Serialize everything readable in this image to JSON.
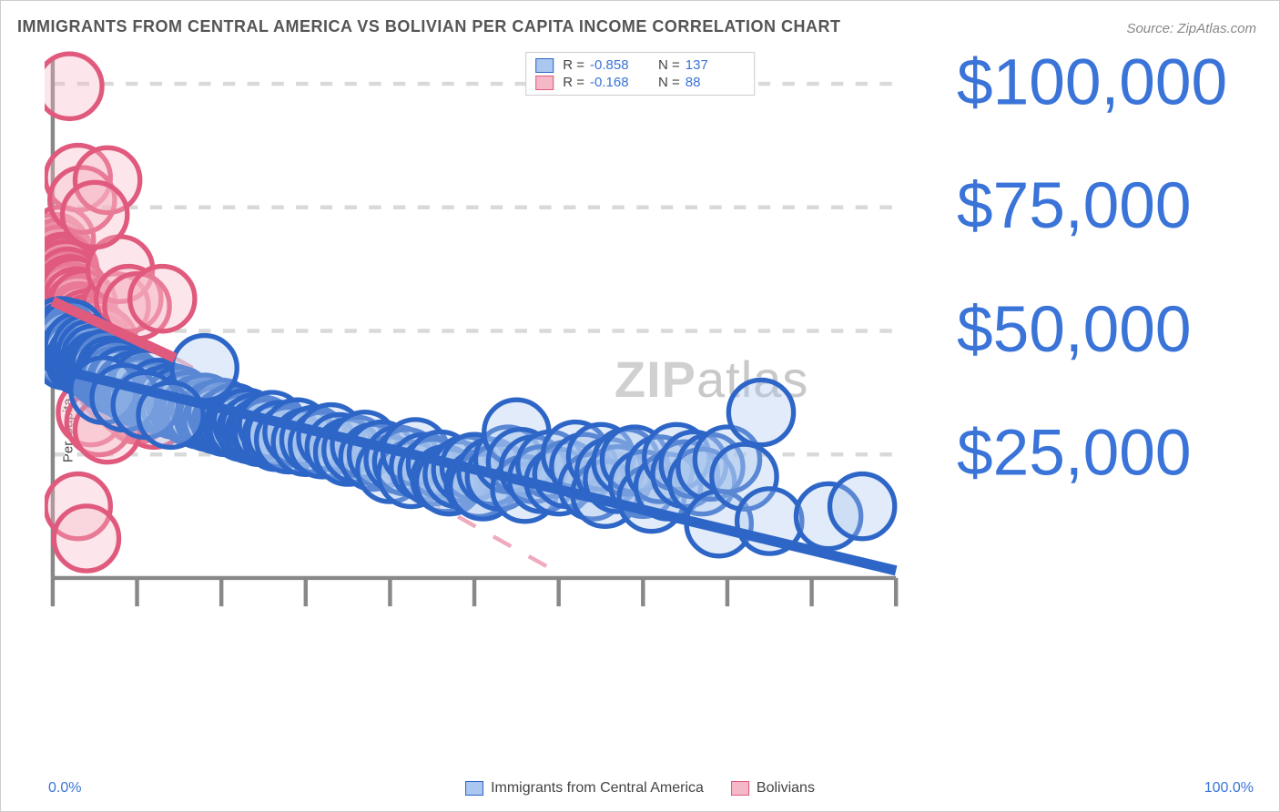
{
  "title": "IMMIGRANTS FROM CENTRAL AMERICA VS BOLIVIAN PER CAPITA INCOME CORRELATION CHART",
  "source": "Source: ZipAtlas.com",
  "watermark": {
    "part1": "ZIP",
    "part2": "atlas"
  },
  "ylabel": "Per Capita Income",
  "chart": {
    "type": "scatter",
    "background_color": "#ffffff",
    "grid_color": "#d9d9d9",
    "axis_color": "#888888",
    "xlim": [
      0,
      100
    ],
    "ylim": [
      0,
      105000
    ],
    "xtick_positions": [
      0,
      10,
      20,
      30,
      40,
      50,
      60,
      70,
      80,
      90,
      100
    ],
    "ytick_values": [
      25000,
      50000,
      75000,
      100000
    ],
    "ytick_labels": [
      "$25,000",
      "$50,000",
      "$75,000",
      "$100,000"
    ],
    "xaxis_start_label": "0.0%",
    "xaxis_end_label": "100.0%",
    "tick_label_color": "#3b74d8",
    "tick_label_fontsize": 16,
    "marker_radius": 8,
    "marker_stroke_width": 1.2,
    "marker_fill_opacity": 0.35,
    "trendline_width": 2.5,
    "series": [
      {
        "name": "Immigrants from Central America",
        "color_fill": "#a9c7ef",
        "color_stroke": "#2e66c7",
        "R": "-0.858",
        "N": "137",
        "trendline": {
          "x1": 0,
          "y1": 42500,
          "x2": 100,
          "y2": 1500,
          "dashed": false
        },
        "points": [
          [
            0.5,
            48500
          ],
          [
            0.8,
            47000
          ],
          [
            1.0,
            50000
          ],
          [
            1.2,
            46000
          ],
          [
            1.4,
            49000
          ],
          [
            1.5,
            45000
          ],
          [
            1.8,
            48000
          ],
          [
            2.0,
            47500
          ],
          [
            2.2,
            49500
          ],
          [
            2.5,
            46000
          ],
          [
            2.8,
            45500
          ],
          [
            3.0,
            47000
          ],
          [
            3.2,
            44000
          ],
          [
            3.5,
            45000
          ],
          [
            3.8,
            43500
          ],
          [
            4.0,
            46500
          ],
          [
            4.2,
            44000
          ],
          [
            4.5,
            45500
          ],
          [
            4.8,
            43000
          ],
          [
            5.0,
            44500
          ],
          [
            5.2,
            43000
          ],
          [
            5.5,
            42500
          ],
          [
            5.8,
            41500
          ],
          [
            6.0,
            42000
          ],
          [
            6.3,
            43500
          ],
          [
            6.5,
            40500
          ],
          [
            6.8,
            42000
          ],
          [
            7.0,
            41000
          ],
          [
            7.3,
            40000
          ],
          [
            7.5,
            41500
          ],
          [
            8.0,
            39500
          ],
          [
            8.5,
            40000
          ],
          [
            9.0,
            38500
          ],
          [
            9.5,
            39000
          ],
          [
            10.0,
            37500
          ],
          [
            10.5,
            38000
          ],
          [
            11.0,
            39500
          ],
          [
            11.5,
            36500
          ],
          [
            12.0,
            37000
          ],
          [
            12.5,
            37500
          ],
          [
            13.0,
            36000
          ],
          [
            13.5,
            35500
          ],
          [
            14.0,
            36500
          ],
          [
            14.5,
            35000
          ],
          [
            15.0,
            36000
          ],
          [
            15.5,
            34500
          ],
          [
            16.0,
            35000
          ],
          [
            16.5,
            33500
          ],
          [
            17.0,
            34000
          ],
          [
            17.5,
            33000
          ],
          [
            18.0,
            34500
          ],
          [
            18.5,
            32500
          ],
          [
            19.0,
            33000
          ],
          [
            19.5,
            32000
          ],
          [
            20.0,
            33500
          ],
          [
            20.5,
            31500
          ],
          [
            21.0,
            32000
          ],
          [
            21.5,
            32500
          ],
          [
            22.0,
            31000
          ],
          [
            22.5,
            30500
          ],
          [
            23.0,
            31500
          ],
          [
            23.5,
            30000
          ],
          [
            24.0,
            30500
          ],
          [
            24.5,
            29500
          ],
          [
            25.0,
            30000
          ],
          [
            25.5,
            29500
          ],
          [
            26.0,
            31000
          ],
          [
            26.5,
            28500
          ],
          [
            27.0,
            29000
          ],
          [
            28.0,
            28000
          ],
          [
            29.0,
            29500
          ],
          [
            30.0,
            27500
          ],
          [
            31.0,
            28000
          ],
          [
            32.0,
            27000
          ],
          [
            33.0,
            28500
          ],
          [
            34.0,
            26500
          ],
          [
            35.0,
            25500
          ],
          [
            36.0,
            26000
          ],
          [
            37.0,
            27000
          ],
          [
            38.0,
            24500
          ],
          [
            39.0,
            25000
          ],
          [
            40.0,
            22000
          ],
          [
            41.0,
            24000
          ],
          [
            42.0,
            23500
          ],
          [
            42.5,
            21000
          ],
          [
            43.0,
            25500
          ],
          [
            44.0,
            22500
          ],
          [
            45.0,
            21500
          ],
          [
            46.0,
            23000
          ],
          [
            46.5,
            20000
          ],
          [
            47.0,
            19500
          ],
          [
            48.0,
            21000
          ],
          [
            49.0,
            22000
          ],
          [
            50.0,
            22500
          ],
          [
            50.5,
            19000
          ],
          [
            51.0,
            18500
          ],
          [
            52.0,
            21500
          ],
          [
            53.0,
            20500
          ],
          [
            54.0,
            24000
          ],
          [
            55.0,
            29500
          ],
          [
            55.5,
            23500
          ],
          [
            56.0,
            18000
          ],
          [
            57.0,
            22000
          ],
          [
            58.0,
            20000
          ],
          [
            59.0,
            23000
          ],
          [
            60.0,
            19500
          ],
          [
            61.0,
            21000
          ],
          [
            62.0,
            25000
          ],
          [
            63.0,
            22500
          ],
          [
            64.0,
            18500
          ],
          [
            65.0,
            24500
          ],
          [
            65.5,
            17000
          ],
          [
            66.0,
            21500
          ],
          [
            67.0,
            20000
          ],
          [
            68.0,
            23500
          ],
          [
            69.0,
            24000
          ],
          [
            70.0,
            19000
          ],
          [
            71.0,
            16000
          ],
          [
            72.0,
            22000
          ],
          [
            73.0,
            18500
          ],
          [
            74.0,
            24500
          ],
          [
            75.0,
            21000
          ],
          [
            76.0,
            23000
          ],
          [
            77.0,
            19500
          ],
          [
            78.0,
            22500
          ],
          [
            79.0,
            11000
          ],
          [
            80.0,
            24000
          ],
          [
            82.0,
            20500
          ],
          [
            84.0,
            33500
          ],
          [
            85.0,
            11500
          ],
          [
            92.0,
            12500
          ],
          [
            96.0,
            14500
          ],
          [
            18.0,
            42500
          ],
          [
            6.0,
            38000
          ],
          [
            8.5,
            36500
          ],
          [
            11.0,
            35000
          ],
          [
            14.0,
            33000
          ]
        ]
      },
      {
        "name": "Bolivians",
        "color_fill": "#f5b8c7",
        "color_stroke": "#e05a7d",
        "R": "-0.168",
        "N": "88",
        "trendline": {
          "x1": 0,
          "y1": 56000,
          "x2": 14.5,
          "y2": 44500,
          "dashed": false
        },
        "trendline_ext": {
          "x1": 14.5,
          "y1": 44500,
          "x2": 60,
          "y2": 1000,
          "dashed": true
        },
        "points": [
          [
            0.3,
            67000
          ],
          [
            0.5,
            65000
          ],
          [
            0.5,
            63500
          ],
          [
            0.7,
            66000
          ],
          [
            0.8,
            62000
          ],
          [
            0.8,
            64500
          ],
          [
            1.0,
            61000
          ],
          [
            1.0,
            68500
          ],
          [
            1.1,
            59000
          ],
          [
            1.2,
            63000
          ],
          [
            1.2,
            60500
          ],
          [
            1.3,
            58000
          ],
          [
            1.4,
            62500
          ],
          [
            1.5,
            57500
          ],
          [
            1.5,
            61500
          ],
          [
            1.6,
            56000
          ],
          [
            1.7,
            59500
          ],
          [
            1.8,
            55000
          ],
          [
            1.8,
            60000
          ],
          [
            1.9,
            54500
          ],
          [
            2.0,
            58500
          ],
          [
            2.0,
            56500
          ],
          [
            2.1,
            53500
          ],
          [
            2.2,
            57000
          ],
          [
            2.3,
            52500
          ],
          [
            2.3,
            55500
          ],
          [
            2.4,
            54000
          ],
          [
            2.5,
            51500
          ],
          [
            2.5,
            58000
          ],
          [
            2.6,
            53000
          ],
          [
            2.7,
            50500
          ],
          [
            2.8,
            56000
          ],
          [
            2.8,
            52000
          ],
          [
            2.9,
            49500
          ],
          [
            3.0,
            54500
          ],
          [
            3.0,
            51000
          ],
          [
            3.1,
            48500
          ],
          [
            3.2,
            53000
          ],
          [
            3.3,
            50000
          ],
          [
            3.4,
            47500
          ],
          [
            3.5,
            52500
          ],
          [
            3.5,
            49000
          ],
          [
            3.6,
            55500
          ],
          [
            3.8,
            47000
          ],
          [
            4.0,
            51500
          ],
          [
            4.0,
            46000
          ],
          [
            4.2,
            50500
          ],
          [
            4.3,
            44500
          ],
          [
            4.5,
            48500
          ],
          [
            4.5,
            45500
          ],
          [
            4.8,
            47000
          ],
          [
            5.0,
            44000
          ],
          [
            5.0,
            49500
          ],
          [
            5.2,
            43500
          ],
          [
            5.5,
            46500
          ],
          [
            5.5,
            42500
          ],
          [
            5.8,
            45000
          ],
          [
            6.0,
            41500
          ],
          [
            6.0,
            48000
          ],
          [
            6.3,
            44000
          ],
          [
            6.5,
            40000
          ],
          [
            6.8,
            43000
          ],
          [
            7.0,
            38500
          ],
          [
            7.2,
            41000
          ],
          [
            7.5,
            37500
          ],
          [
            7.5,
            55000
          ],
          [
            8.0,
            39000
          ],
          [
            8.0,
            62500
          ],
          [
            8.3,
            36500
          ],
          [
            8.5,
            40500
          ],
          [
            9.0,
            35500
          ],
          [
            9.0,
            56500
          ],
          [
            9.5,
            38000
          ],
          [
            10.0,
            34000
          ],
          [
            10.0,
            55000
          ],
          [
            11.0,
            36000
          ],
          [
            12.0,
            33000
          ],
          [
            13.0,
            56500
          ],
          [
            2.0,
            99500
          ],
          [
            3.0,
            81000
          ],
          [
            3.5,
            76500
          ],
          [
            6.5,
            80500
          ],
          [
            5.0,
            73500
          ],
          [
            3.0,
            14500
          ],
          [
            4.0,
            8000
          ],
          [
            4.5,
            33500
          ],
          [
            5.5,
            31500
          ],
          [
            6.5,
            30000
          ]
        ]
      }
    ]
  },
  "legend_bottom": [
    {
      "label": "Immigrants from Central America"
    },
    {
      "label": "Bolivians"
    }
  ]
}
